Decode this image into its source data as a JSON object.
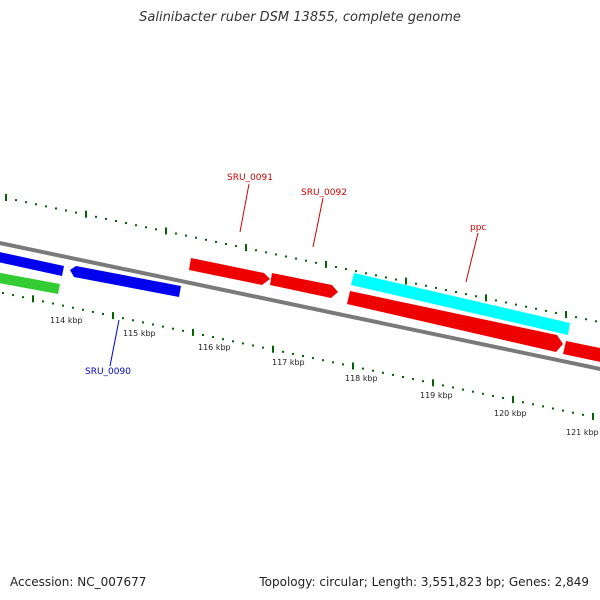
{
  "title": "Salinibacter ruber DSM 13855, complete genome",
  "footer": {
    "accession": "Accession: NC_007677",
    "summary": "Topology: circular; Length: 3,551,823 bp; Genes: 2,849"
  },
  "ticks": [
    "114 kbp",
    "115 kbp",
    "116 kbp",
    "117 kbp",
    "118 kbp",
    "119 kbp",
    "120 kbp",
    "121 kbp"
  ],
  "genes": [
    {
      "label": "SRU_0091",
      "color": "#cc0000"
    },
    {
      "label": "SRU_0092",
      "color": "#cc0000"
    },
    {
      "label": "ppc",
      "color": "#cc0000"
    },
    {
      "label": "SRU_0090",
      "color": "#0000cc"
    }
  ],
  "colors": {
    "backbone": "#808080",
    "tick_marks": "#006400",
    "forward_gene": "#ff0000",
    "reverse_gene": "#0000ff",
    "cyan_feature": "#00ffff",
    "green_feature": "#33cc33"
  }
}
